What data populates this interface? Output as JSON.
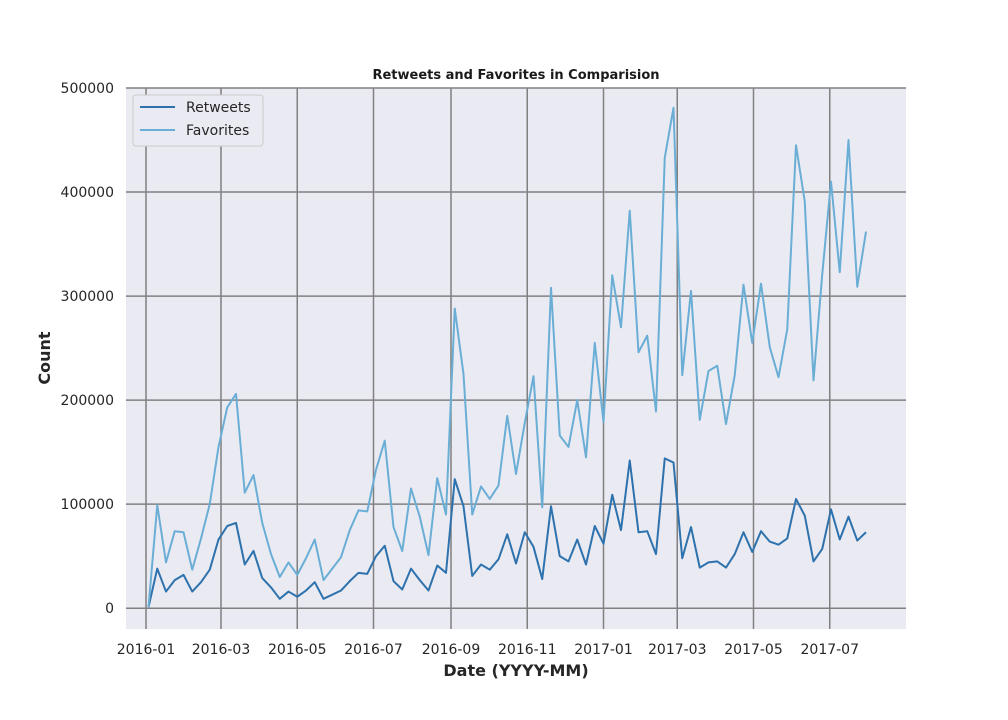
{
  "chart_data": {
    "type": "line",
    "title": "Retweets and Favorites in Comparision",
    "xlabel": "Date (YYYY-MM)",
    "ylabel": "Count",
    "xlim": [
      "2015-12-16",
      "2017-08-31"
    ],
    "ylim": [
      -20000,
      500000
    ],
    "x_ticks": [
      "2016-01",
      "2016-03",
      "2016-05",
      "2016-07",
      "2016-09",
      "2016-11",
      "2017-01",
      "2017-03",
      "2017-05",
      "2017-07"
    ],
    "y_ticks": [
      0,
      100000,
      200000,
      300000,
      400000,
      500000
    ],
    "grid": true,
    "legend_position": "upper left",
    "background_color": "#eaeaf2",
    "grid_color": "#808080",
    "x": [
      "2016-01-03",
      "2016-01-10",
      "2016-01-17",
      "2016-01-24",
      "2016-01-31",
      "2016-02-07",
      "2016-02-14",
      "2016-02-21",
      "2016-02-28",
      "2016-03-06",
      "2016-03-13",
      "2016-03-20",
      "2016-03-27",
      "2016-04-03",
      "2016-04-10",
      "2016-04-17",
      "2016-04-24",
      "2016-05-01",
      "2016-05-08",
      "2016-05-15",
      "2016-05-22",
      "2016-05-29",
      "2016-06-05",
      "2016-06-12",
      "2016-06-19",
      "2016-06-26",
      "2016-07-03",
      "2016-07-10",
      "2016-07-17",
      "2016-07-24",
      "2016-07-31",
      "2016-08-07",
      "2016-08-14",
      "2016-08-21",
      "2016-08-28",
      "2016-09-04",
      "2016-09-11",
      "2016-09-18",
      "2016-09-25",
      "2016-10-02",
      "2016-10-09",
      "2016-10-16",
      "2016-10-23",
      "2016-10-30",
      "2016-11-06",
      "2016-11-13",
      "2016-11-20",
      "2016-11-27",
      "2016-12-04",
      "2016-12-11",
      "2016-12-18",
      "2016-12-25",
      "2017-01-01",
      "2017-01-08",
      "2017-01-15",
      "2017-01-22",
      "2017-01-29",
      "2017-02-05",
      "2017-02-12",
      "2017-02-19",
      "2017-02-26",
      "2017-03-05",
      "2017-03-12",
      "2017-03-19",
      "2017-03-26",
      "2017-04-02",
      "2017-04-09",
      "2017-04-16",
      "2017-04-23",
      "2017-04-30",
      "2017-05-07",
      "2017-05-14",
      "2017-05-21",
      "2017-05-28",
      "2017-06-04",
      "2017-06-11",
      "2017-06-18",
      "2017-06-25",
      "2017-07-02",
      "2017-07-09",
      "2017-07-16",
      "2017-07-23",
      "2017-07-30"
    ],
    "series": [
      {
        "name": "Retweets",
        "color": "#2e72ad",
        "values": [
          1000,
          38000,
          16000,
          27000,
          32000,
          16000,
          25000,
          37000,
          66000,
          79000,
          82000,
          42000,
          55000,
          29000,
          20000,
          9000,
          16000,
          11000,
          17000,
          25000,
          9000,
          13000,
          17000,
          26000,
          34000,
          33000,
          50000,
          60000,
          26000,
          18000,
          38000,
          27000,
          17000,
          41000,
          34000,
          124000,
          98000,
          31000,
          42000,
          37000,
          47000,
          71000,
          43000,
          73000,
          59000,
          28000,
          98000,
          50000,
          45000,
          66000,
          42000,
          79000,
          62000,
          109000,
          75000,
          142000,
          73000,
          74000,
          52000,
          144000,
          140000,
          48000,
          78000,
          39000,
          44000,
          45000,
          39000,
          52000,
          73000,
          54000,
          74000,
          64000,
          61000,
          67000,
          105000,
          89000,
          45000,
          57000,
          95000,
          66000,
          88000,
          65000,
          73000
        ]
      },
      {
        "name": "Favorites",
        "color": "#6aaed6",
        "values": [
          1000,
          99000,
          44000,
          74000,
          73000,
          37000,
          67000,
          100000,
          155000,
          193000,
          206000,
          111000,
          128000,
          82000,
          52000,
          30000,
          44000,
          32000,
          48000,
          66000,
          27000,
          38000,
          49000,
          75000,
          94000,
          93000,
          133000,
          161000,
          78000,
          55000,
          115000,
          88000,
          51000,
          125000,
          90000,
          288000,
          225000,
          90000,
          117000,
          105000,
          118000,
          185000,
          129000,
          178000,
          223000,
          97000,
          308000,
          166000,
          155000,
          200000,
          145000,
          255000,
          179000,
          320000,
          270000,
          382000,
          246000,
          262000,
          189000,
          433000,
          481000,
          224000,
          305000,
          181000,
          228000,
          233000,
          177000,
          224000,
          311000,
          255000,
          312000,
          251000,
          222000,
          268000,
          445000,
          391000,
          219000,
          321000,
          410000,
          323000,
          450000,
          309000,
          362000
        ]
      }
    ]
  }
}
